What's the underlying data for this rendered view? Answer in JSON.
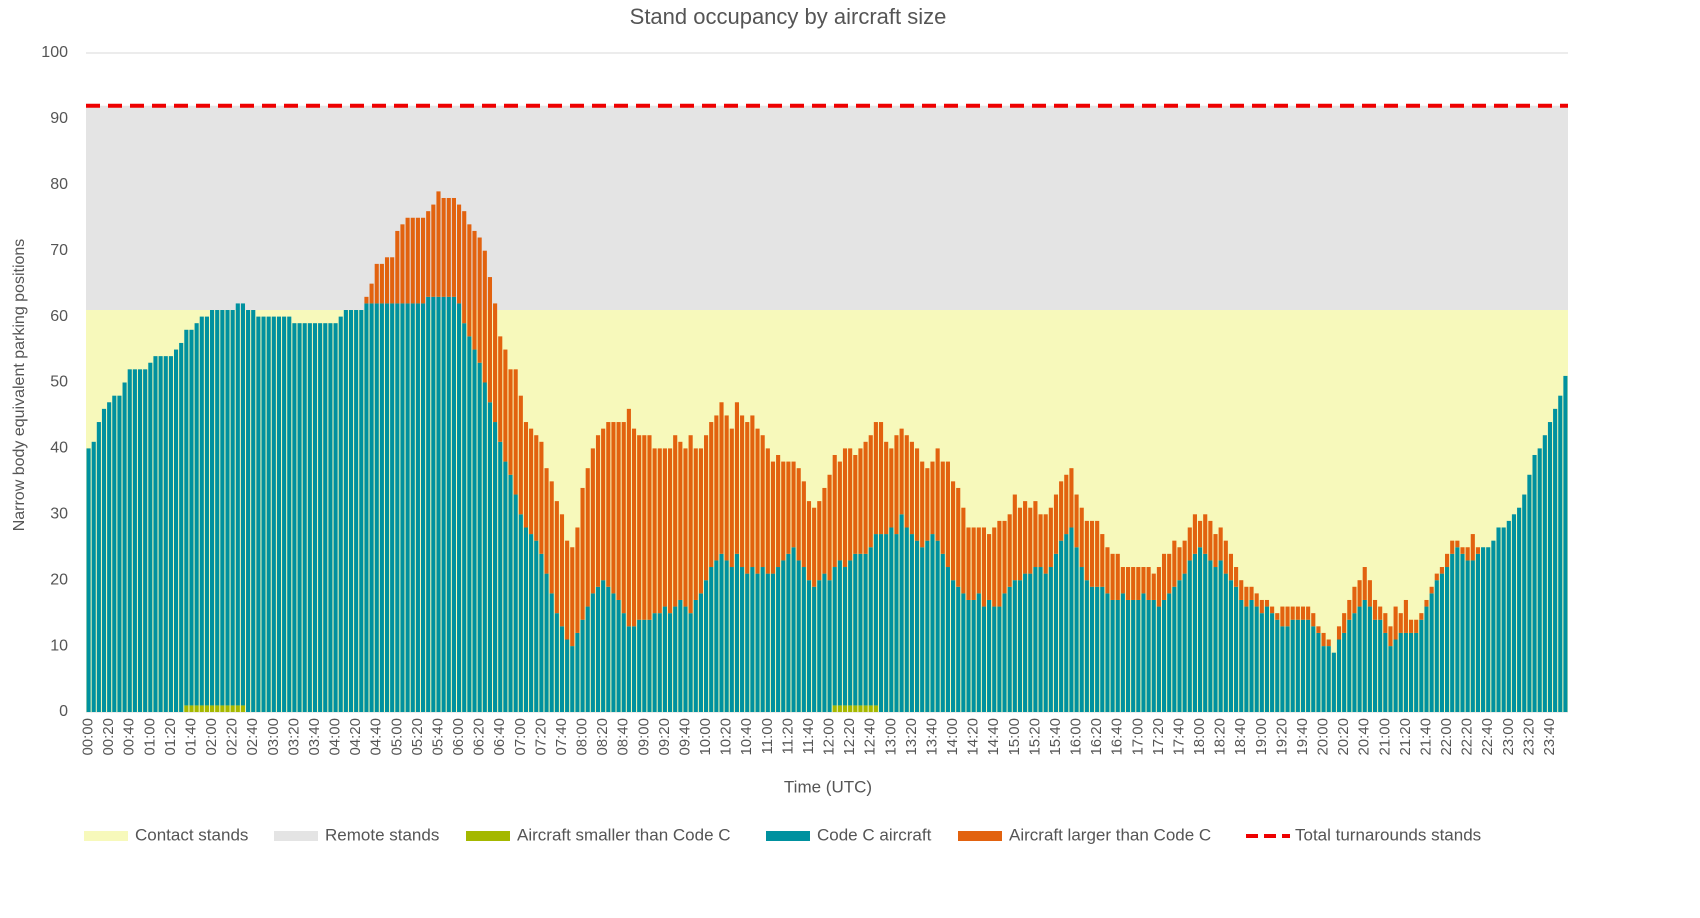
{
  "chart_data": {
    "type": "stacked_bar",
    "title": "Stand occupancy by aircraft size",
    "xlabel": "Time (UTC)",
    "ylabel": "Narrow body equivalent parking positions",
    "ylim": [
      0,
      100
    ],
    "yticks": [
      0,
      10,
      20,
      30,
      40,
      50,
      60,
      70,
      80,
      90,
      100
    ],
    "grid": true,
    "reference_areas": [
      {
        "name": "Contact stands",
        "color": "#f7f9bb",
        "value": 61
      },
      {
        "name": "Remote stands",
        "color": "#e4e4e4",
        "value": 31
      }
    ],
    "reference_line": {
      "name": "Total turnarounds stands",
      "color": "#ee0000",
      "value": 92
    },
    "categories": [
      "00:00",
      null,
      null,
      null,
      "00:20",
      null,
      null,
      null,
      "00:40",
      null,
      null,
      null,
      "01:00",
      null,
      null,
      null,
      "01:20",
      null,
      null,
      null,
      "01:40",
      null,
      null,
      null,
      "02:00",
      null,
      null,
      null,
      "02:20",
      null,
      null,
      null,
      "02:40",
      null,
      null,
      null,
      "03:00",
      null,
      null,
      null,
      "03:20",
      null,
      null,
      null,
      "03:40",
      null,
      null,
      null,
      "04:00",
      null,
      null,
      null,
      "04:20",
      null,
      null,
      null,
      "04:40",
      null,
      null,
      null,
      "05:00",
      null,
      null,
      null,
      "05:20",
      null,
      null,
      null,
      "05:40",
      null,
      null,
      null,
      "06:00",
      null,
      null,
      null,
      "06:20",
      null,
      null,
      null,
      "06:40",
      null,
      null,
      null,
      "07:00",
      null,
      null,
      null,
      "07:20",
      null,
      null,
      null,
      "07:40",
      null,
      null,
      null,
      "08:00",
      null,
      null,
      null,
      "08:20",
      null,
      null,
      null,
      "08:40",
      null,
      null,
      null,
      "09:00",
      null,
      null,
      null,
      "09:20",
      null,
      null,
      null,
      "09:40",
      null,
      null,
      null,
      "10:00",
      null,
      null,
      null,
      "10:20",
      null,
      null,
      null,
      "10:40",
      null,
      null,
      null,
      "11:00",
      null,
      null,
      null,
      "11:20",
      null,
      null,
      null,
      "11:40",
      null,
      null,
      null,
      "12:00",
      null,
      null,
      null,
      "12:20",
      null,
      null,
      null,
      "12:40",
      null,
      null,
      null,
      "13:00",
      null,
      null,
      null,
      "13:20",
      null,
      null,
      null,
      "13:40",
      null,
      null,
      null,
      "14:00",
      null,
      null,
      null,
      "14:20",
      null,
      null,
      null,
      "14:40",
      null,
      null,
      null,
      "15:00",
      null,
      null,
      null,
      "15:20",
      null,
      null,
      null,
      "15:40",
      null,
      null,
      null,
      "16:00",
      null,
      null,
      null,
      "16:20",
      null,
      null,
      null,
      "16:40",
      null,
      null,
      null,
      "17:00",
      null,
      null,
      null,
      "17:20",
      null,
      null,
      null,
      "17:40",
      null,
      null,
      null,
      "18:00",
      null,
      null,
      null,
      "18:20",
      null,
      null,
      null,
      "18:40",
      null,
      null,
      null,
      "19:00",
      null,
      null,
      null,
      "19:20",
      null,
      null,
      null,
      "19:40",
      null,
      null,
      null,
      "20:00",
      null,
      null,
      null,
      "20:20",
      null,
      null,
      null,
      "20:40",
      null,
      null,
      null,
      "21:00",
      null,
      null,
      null,
      "21:20",
      null,
      null,
      null,
      "21:40",
      null,
      null,
      null,
      "22:00",
      null,
      null,
      null,
      "22:20",
      null,
      null,
      null,
      "22:40",
      null,
      null,
      null,
      "23:00",
      null,
      null,
      null,
      "23:20",
      null,
      null,
      null,
      "23:40",
      null,
      null,
      null
    ],
    "series": [
      {
        "name": "Aircraft smaller than Code C",
        "color": "#a4b800",
        "values": [
          0,
          0,
          0,
          0,
          0,
          0,
          0,
          0,
          0,
          0,
          0,
          0,
          0,
          0,
          0,
          0,
          0,
          0,
          0,
          1,
          1,
          1,
          1,
          1,
          1,
          1,
          1,
          1,
          1,
          1,
          1,
          0,
          0,
          0,
          0,
          0,
          0,
          0,
          0,
          0,
          0,
          0,
          0,
          0,
          0,
          0,
          0,
          0,
          0,
          0,
          0,
          0,
          0,
          0,
          0,
          0,
          0,
          0,
          0,
          0,
          0,
          0,
          0,
          0,
          0,
          0,
          0,
          0,
          0,
          0,
          0,
          0,
          0,
          0,
          0,
          0,
          0,
          0,
          0,
          0,
          0,
          0,
          0,
          0,
          0,
          0,
          0,
          0,
          0,
          0,
          0,
          0,
          0,
          0,
          0,
          0,
          0,
          0,
          0,
          0,
          0,
          0,
          0,
          0,
          0,
          0,
          0,
          0,
          0,
          0,
          0,
          0,
          0,
          0,
          0,
          0,
          0,
          0,
          0,
          0,
          0,
          0,
          0,
          0,
          0,
          0,
          0,
          0,
          0,
          0,
          0,
          0,
          0,
          0,
          0,
          0,
          0,
          0,
          0,
          0,
          0,
          0,
          0,
          0,
          0,
          1,
          1,
          1,
          1,
          1,
          1,
          1,
          1,
          1,
          0,
          0,
          0,
          0,
          0,
          0,
          0,
          0,
          0,
          0,
          0,
          0,
          0,
          0,
          0,
          0,
          0,
          0,
          0,
          0,
          0,
          0,
          0,
          0,
          0,
          0,
          0,
          0,
          0,
          0,
          0,
          0,
          0,
          0,
          0,
          0,
          0,
          0,
          0,
          0,
          0,
          0,
          0,
          0,
          0,
          0,
          0,
          0,
          0,
          0,
          0,
          0,
          0,
          0,
          0,
          0,
          0,
          0,
          0,
          0,
          0,
          0,
          0,
          0,
          0,
          0,
          0,
          0,
          0,
          0,
          0,
          0,
          0,
          0,
          0,
          0,
          0,
          0,
          0,
          0,
          0,
          0,
          0,
          0,
          0,
          0,
          0,
          0,
          0,
          0,
          0,
          0,
          0,
          0,
          0,
          0,
          0,
          0,
          0,
          0,
          0,
          0,
          0,
          0,
          0,
          0,
          0,
          0,
          0,
          0,
          0,
          0,
          0,
          0,
          0,
          0,
          0,
          0,
          0,
          0,
          0,
          0,
          0,
          0,
          0,
          0,
          0,
          0,
          0,
          0,
          0,
          0,
          0,
          0
        ]
      },
      {
        "name": "Code C aircraft",
        "color": "#00919f",
        "values": [
          40,
          41,
          44,
          46,
          47,
          48,
          48,
          50,
          52,
          52,
          52,
          52,
          53,
          54,
          54,
          54,
          54,
          55,
          56,
          57,
          57,
          58,
          59,
          59,
          60,
          60,
          60,
          60,
          60,
          61,
          61,
          61,
          61,
          60,
          60,
          60,
          60,
          60,
          60,
          60,
          59,
          59,
          59,
          59,
          59,
          59,
          59,
          59,
          59,
          60,
          61,
          61,
          61,
          61,
          62,
          62,
          62,
          62,
          62,
          62,
          62,
          62,
          62,
          62,
          62,
          62,
          63,
          63,
          63,
          63,
          63,
          63,
          62,
          59,
          57,
          55,
          53,
          50,
          47,
          44,
          41,
          38,
          36,
          33,
          30,
          28,
          27,
          26,
          24,
          21,
          18,
          15,
          13,
          11,
          10,
          12,
          14,
          16,
          18,
          19,
          20,
          19,
          18,
          17,
          15,
          13,
          13,
          14,
          14,
          14,
          15,
          15,
          16,
          15,
          16,
          17,
          16,
          15,
          17,
          18,
          20,
          22,
          23,
          24,
          23,
          22,
          24,
          22,
          21,
          22,
          21,
          22,
          21,
          21,
          22,
          23,
          24,
          25,
          23,
          22,
          20,
          19,
          20,
          21,
          20,
          21,
          22,
          21,
          22,
          23,
          23,
          23,
          24,
          26,
          27,
          27,
          28,
          27,
          30,
          28,
          27,
          26,
          25,
          26,
          27,
          26,
          24,
          22,
          20,
          19,
          18,
          17,
          17,
          18,
          16,
          17,
          16,
          16,
          18,
          19,
          20,
          20,
          21,
          21,
          22,
          22,
          21,
          22,
          24,
          26,
          27,
          28,
          25,
          22,
          20,
          19,
          19,
          19,
          18,
          17,
          17,
          18,
          17,
          17,
          17,
          18,
          17,
          17,
          16,
          17,
          18,
          19,
          20,
          21,
          23,
          24,
          25,
          24,
          23,
          22,
          23,
          21,
          20,
          19,
          17,
          16,
          17,
          16,
          15,
          16,
          15,
          14,
          13,
          13,
          14,
          14,
          14,
          14,
          13,
          12,
          10,
          10,
          9,
          11,
          12,
          14,
          15,
          16,
          17,
          16,
          14,
          14,
          12,
          10,
          11,
          12,
          12,
          12,
          12,
          14,
          16,
          18,
          20,
          21,
          22,
          24,
          25,
          24,
          23,
          23,
          24,
          25,
          25,
          26,
          28,
          28,
          29,
          30,
          31,
          33,
          36,
          39,
          40,
          42,
          44,
          46,
          48,
          51
        ]
      },
      {
        "name": "Aircraft larger than Code C",
        "color": "#e2620f",
        "values": [
          0,
          0,
          0,
          0,
          0,
          0,
          0,
          0,
          0,
          0,
          0,
          0,
          0,
          0,
          0,
          0,
          0,
          0,
          0,
          0,
          0,
          0,
          0,
          0,
          0,
          0,
          0,
          0,
          0,
          0,
          0,
          0,
          0,
          0,
          0,
          0,
          0,
          0,
          0,
          0,
          0,
          0,
          0,
          0,
          0,
          0,
          0,
          0,
          0,
          0,
          0,
          0,
          0,
          0,
          1,
          3,
          6,
          6,
          7,
          7,
          11,
          12,
          13,
          13,
          13,
          13,
          13,
          14,
          16,
          15,
          15,
          15,
          15,
          17,
          17,
          18,
          19,
          20,
          19,
          18,
          16,
          17,
          16,
          19,
          18,
          16,
          16,
          16,
          17,
          16,
          17,
          17,
          17,
          15,
          15,
          16,
          20,
          21,
          22,
          23,
          23,
          25,
          26,
          27,
          29,
          33,
          30,
          28,
          28,
          28,
          25,
          25,
          24,
          25,
          26,
          24,
          24,
          27,
          23,
          22,
          22,
          22,
          22,
          23,
          22,
          21,
          23,
          23,
          23,
          23,
          22,
          20,
          19,
          17,
          17,
          15,
          14,
          13,
          14,
          13,
          12,
          12,
          12,
          13,
          16,
          17,
          15,
          18,
          17,
          15,
          16,
          17,
          17,
          17,
          17,
          14,
          12,
          15,
          13,
          14,
          14,
          14,
          13,
          11,
          11,
          14,
          14,
          16,
          15,
          15,
          13,
          11,
          11,
          10,
          12,
          10,
          12,
          13,
          11,
          11,
          13,
          11,
          11,
          10,
          10,
          8,
          9,
          9,
          9,
          9,
          9,
          9,
          8,
          9,
          9,
          10,
          10,
          8,
          7,
          7,
          7,
          4,
          5,
          5,
          5,
          4,
          5,
          4,
          6,
          7,
          6,
          7,
          5,
          5,
          5,
          6,
          4,
          6,
          6,
          5,
          5,
          5,
          4,
          3,
          3,
          3,
          2,
          2,
          2,
          1,
          1,
          1,
          3,
          3,
          2,
          2,
          2,
          2,
          2,
          1,
          2,
          1,
          0,
          2,
          3,
          3,
          4,
          4,
          5,
          4,
          3,
          2,
          3,
          3,
          5,
          3,
          5,
          2,
          2,
          1,
          1,
          1,
          1,
          1,
          2,
          2,
          1,
          1,
          2,
          4,
          1,
          0,
          0,
          0,
          0,
          0,
          0,
          0,
          0,
          0,
          0,
          0,
          0,
          0,
          0,
          0,
          0,
          0
        ]
      }
    ]
  }
}
